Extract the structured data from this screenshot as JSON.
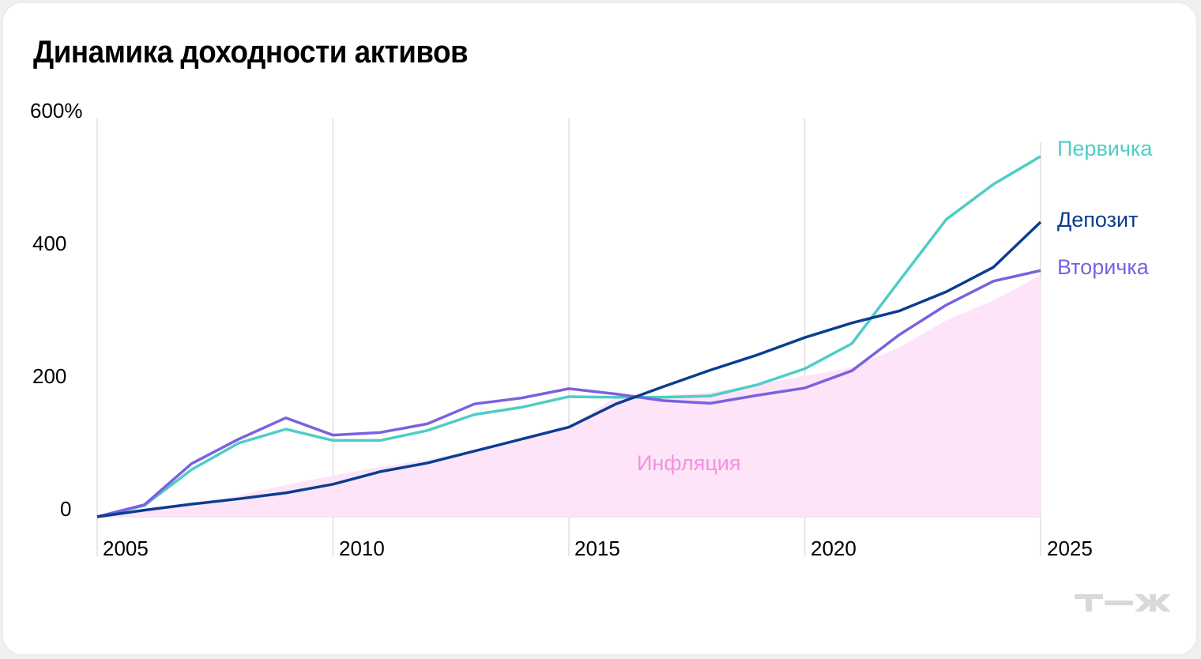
{
  "title": "Динамика доходности активов",
  "colors": {
    "primary": "#4ecdc4",
    "deposit": "#0a3d91",
    "secondary": "#7b61e0",
    "inflation_fill": "#fde4f8",
    "inflation_text": "#f590e2",
    "grid": "#e2dde2",
    "logo": "#d9d9d9"
  },
  "axis": {
    "y_ticks": [
      "600%",
      "400",
      "200",
      "0"
    ],
    "x_ticks": [
      "2005",
      "2010",
      "2015",
      "2020",
      "2025"
    ]
  },
  "labels": {
    "primary": "Первичка",
    "deposit": "Депозит",
    "secondary": "Вторичка",
    "inflation": "Инфляция"
  },
  "logo": "т—ж",
  "chart_data": {
    "type": "line",
    "title": "Динамика доходности активов",
    "xlabel": "",
    "ylabel": "%",
    "ylim": [
      0,
      600
    ],
    "xlim": [
      2005,
      2025
    ],
    "y_ticks": [
      0,
      200,
      400,
      600
    ],
    "x_ticks": [
      2005,
      2010,
      2015,
      2020,
      2025
    ],
    "grid": "vertical lines at 2005, 2010, 2015, 2020, 2025",
    "legend": "inline labels at right end of lines",
    "x": [
      2005,
      2006,
      2007,
      2008,
      2009,
      2010,
      2011,
      2012,
      2013,
      2014,
      2015,
      2016,
      2017,
      2018,
      2019,
      2020,
      2021,
      2022,
      2023,
      2024,
      2025
    ],
    "series": [
      {
        "name": "Первичка",
        "type": "line",
        "color": "#4ecdc4",
        "values": [
          0,
          17,
          71,
          111,
          132,
          115,
          115,
          130,
          154,
          165,
          181,
          180,
          180,
          182,
          199,
          223,
          261,
          355,
          448,
          501,
          543
        ]
      },
      {
        "name": "Депозит",
        "type": "line",
        "color": "#0a3d91",
        "values": [
          0,
          10,
          19,
          27,
          36,
          49,
          68,
          81,
          99,
          117,
          135,
          170,
          196,
          221,
          244,
          270,
          292,
          310,
          339,
          376,
          444
        ]
      },
      {
        "name": "Вторичка",
        "type": "line",
        "color": "#7b61e0",
        "values": [
          0,
          18,
          80,
          117,
          149,
          123,
          127,
          140,
          170,
          179,
          193,
          185,
          175,
          171,
          183,
          194,
          220,
          274,
          319,
          355,
          371
        ]
      },
      {
        "name": "Инфляция",
        "type": "area",
        "color": "#fde4f8",
        "values": [
          0,
          8,
          18,
          32,
          48,
          62,
          75,
          86,
          100,
          117,
          136,
          180,
          183,
          187,
          200,
          212,
          225,
          255,
          296,
          326,
          364
        ]
      }
    ]
  }
}
